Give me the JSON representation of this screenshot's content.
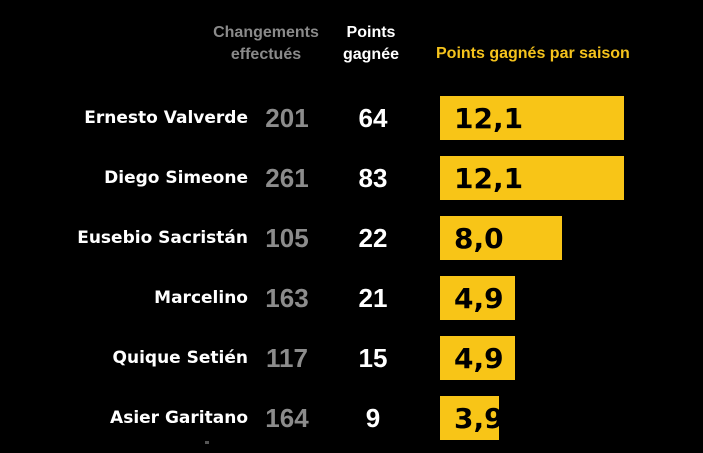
{
  "headers": {
    "changes": "Changements effectués",
    "points": "Points gagnée",
    "season": "Points gagnés par saison"
  },
  "colors": {
    "bar": "#f8c517",
    "background": "#000000",
    "changes_text": "#8c8c8c"
  },
  "chart_data": {
    "type": "bar",
    "orientation": "horizontal",
    "title": "Points gagnés par saison",
    "categories": [
      "Ernesto Valverde",
      "Diego Simeone",
      "Eusebio Sacristán",
      "Marcelino",
      "Quique Setién",
      "Asier Garitano"
    ],
    "values": [
      12.1,
      12.1,
      8.0,
      4.9,
      4.9,
      3.9
    ],
    "value_labels": [
      "12,1",
      "12,1",
      "8,0",
      "4,9",
      "4,9",
      "3,9"
    ],
    "table_columns": [
      "Changements effectués",
      "Points gagnée"
    ],
    "changes": [
      "201",
      "261",
      "105",
      "163",
      "117",
      "164"
    ],
    "points": [
      "64",
      "83",
      "22",
      "21",
      "15",
      "9"
    ]
  }
}
